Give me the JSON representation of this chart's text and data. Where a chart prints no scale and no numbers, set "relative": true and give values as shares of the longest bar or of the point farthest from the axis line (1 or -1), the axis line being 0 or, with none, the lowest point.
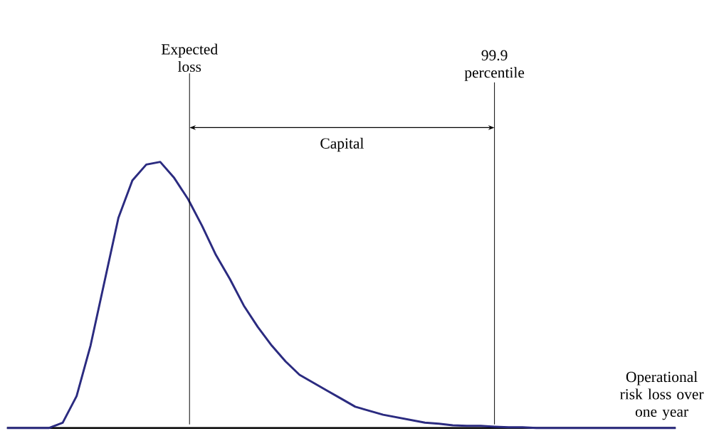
{
  "chart_data": {
    "type": "line",
    "relative": true,
    "color": "#2b2b80",
    "line_style": "solid",
    "xlabel": "Operational risk loss over one year",
    "categories": [
      null,
      null,
      null,
      null,
      null,
      null,
      null,
      null,
      null,
      null,
      null,
      null,
      null,
      null,
      null,
      null,
      null,
      null,
      null,
      null,
      null,
      null,
      null,
      null,
      null,
      null,
      null,
      null,
      null,
      null,
      null,
      null,
      null,
      null,
      null,
      null,
      null,
      null,
      null,
      null,
      null,
      null,
      null,
      null,
      null,
      null,
      null,
      null,
      null
    ],
    "values": [
      0,
      0,
      0,
      0,
      0.02,
      0.12,
      0.31,
      0.55,
      0.79,
      0.93,
      0.99,
      1,
      0.94,
      0.86,
      0.76,
      0.65,
      0.56,
      0.46,
      0.38,
      0.31,
      0.25,
      0.2,
      0.17,
      0.14,
      0.11,
      0.08,
      0.065,
      0.05,
      0.04,
      0.03,
      0.02,
      0.016,
      0.01,
      0.008,
      0.008,
      0.005,
      0.003,
      0.003,
      0,
      0,
      0,
      0,
      0,
      0,
      0,
      0,
      0,
      0,
      0
    ],
    "annotations": [
      "Expected loss",
      "99.9 percentile",
      "Capital"
    ]
  }
}
